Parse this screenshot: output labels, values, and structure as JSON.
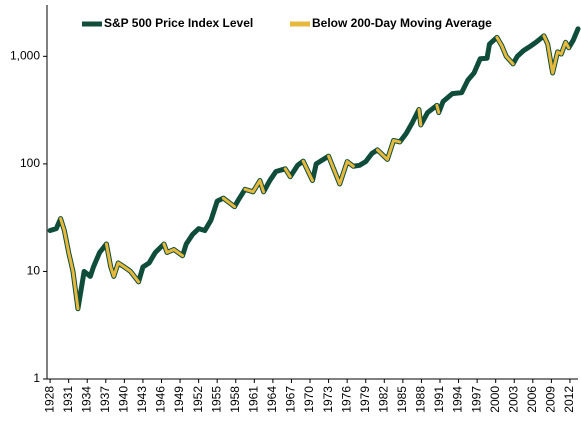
{
  "chart_data": {
    "type": "line",
    "log_scale": "y",
    "legend": "top",
    "x": [
      1928,
      1929,
      1929.7,
      1930.3,
      1931,
      1931.7,
      1932.5,
      1933.5,
      1934.5,
      1935,
      1936,
      1937.1,
      1937.8,
      1938.3,
      1939,
      1940,
      1941,
      1942.3,
      1943,
      1944,
      1945,
      1946.4,
      1946.9,
      1948,
      1949.4,
      1950,
      1951,
      1952,
      1953,
      1954,
      1955,
      1956,
      1957.8,
      1958.5,
      1959.5,
      1960.8,
      1961.9,
      1962.5,
      1963.5,
      1964.5,
      1966,
      1966.8,
      1968,
      1968.9,
      1970.4,
      1971,
      1973,
      1974.8,
      1976,
      1977,
      1978,
      1979,
      1980,
      1980.9,
      1982.5,
      1983.5,
      1984.5,
      1985.5,
      1986.5,
      1987.6,
      1987.9,
      1989,
      1990.5,
      1990.8,
      1991.5,
      1993,
      1994.5,
      1995.5,
      1996.5,
      1997.5,
      1998.6,
      1999,
      2000.2,
      2001,
      2001.7,
      2002.8,
      2003.5,
      2004.5,
      2005.5,
      2006.5,
      2007.8,
      2008.4,
      2009.2,
      2010,
      2010.6,
      2011.3,
      2011.8,
      2012.5,
      2013.3
    ],
    "series": [
      {
        "name": "S&P 500 Price Index Level",
        "color": "#0f4d3a",
        "values": [
          24,
          25,
          31,
          24,
          15,
          10,
          4.5,
          10,
          9,
          11,
          15,
          18,
          11,
          9,
          12,
          11,
          10,
          8,
          11,
          12,
          15,
          18,
          15,
          16,
          14,
          18,
          22,
          25,
          24,
          30,
          45,
          48,
          40,
          47,
          58,
          55,
          70,
          55,
          70,
          85,
          90,
          76,
          97,
          106,
          70,
          100,
          118,
          65,
          105,
          95,
          97,
          105,
          125,
          135,
          110,
          165,
          160,
          190,
          240,
          320,
          230,
          300,
          350,
          300,
          380,
          450,
          460,
          600,
          700,
          950,
          960,
          1300,
          1500,
          1250,
          1000,
          850,
          1000,
          1130,
          1230,
          1350,
          1550,
          1300,
          700,
          1100,
          1050,
          1350,
          1200,
          1400,
          1800
        ]
      },
      {
        "name": "Below 200-Day Moving Average",
        "color": "#e6b83c",
        "values": [
          null,
          null,
          31,
          24,
          15,
          10,
          4.5,
          null,
          null,
          null,
          null,
          18,
          11,
          9,
          12,
          11,
          10,
          8,
          null,
          null,
          null,
          18,
          15,
          16,
          14,
          null,
          null,
          null,
          null,
          null,
          null,
          48,
          40,
          null,
          58,
          55,
          70,
          55,
          null,
          null,
          90,
          76,
          null,
          106,
          70,
          null,
          118,
          65,
          105,
          95,
          null,
          null,
          null,
          135,
          110,
          165,
          160,
          null,
          null,
          320,
          230,
          null,
          350,
          300,
          null,
          null,
          null,
          null,
          null,
          null,
          null,
          null,
          1500,
          1250,
          1000,
          850,
          null,
          null,
          null,
          null,
          1550,
          1300,
          700,
          1100,
          1050,
          1350,
          1200,
          null,
          null
        ]
      }
    ],
    "xlim": [
      1927.5,
      2013.3
    ],
    "xticks": [
      1928,
      1931,
      1934,
      1937,
      1940,
      1943,
      1946,
      1949,
      1952,
      1955,
      1958,
      1961,
      1964,
      1967,
      1970,
      1973,
      1976,
      1979,
      1982,
      1985,
      1988,
      1991,
      1994,
      1997,
      2000,
      2003,
      2006,
      2009,
      2012
    ],
    "ylim": [
      1,
      3000
    ],
    "yticks": [
      1,
      10,
      100,
      {
        "value": 1000,
        "label": "1,000"
      }
    ]
  }
}
